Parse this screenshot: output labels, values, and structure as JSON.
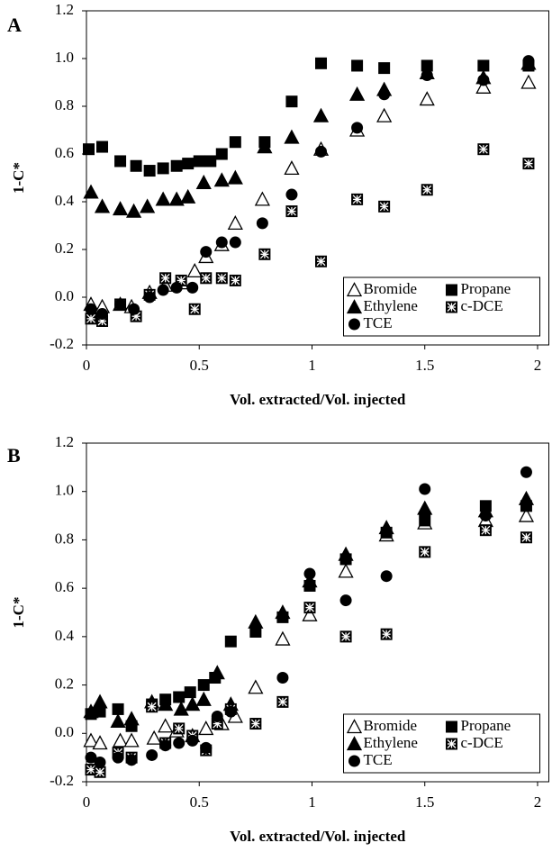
{
  "chart_data": [
    {
      "type": "scatter",
      "panel_label": "A",
      "xlabel": "Vol. extracted/Vol. injected",
      "ylabel": "1-C*",
      "xlim": [
        0,
        2.05
      ],
      "xticks": [
        0,
        0.5,
        1,
        1.5,
        2
      ],
      "ylim": [
        -0.2,
        1.2
      ],
      "yticks": [
        -0.2,
        {
          "value": 0,
          "label": "0.0"
        },
        0.2,
        0.4,
        0.6,
        0.8,
        {
          "value": 1,
          "label": "1.0"
        },
        1.2
      ],
      "legend": "lower right",
      "series": [
        {
          "name": "Bromide",
          "color": "#000000",
          "marker": "triangle-open",
          "x": [
            0.02,
            0.07,
            0.15,
            0.2,
            0.28,
            0.35,
            0.42,
            0.48,
            0.53,
            0.6,
            0.66,
            0.78,
            0.91,
            1.04,
            1.2,
            1.32,
            1.51,
            1.76,
            1.96
          ],
          "values": [
            -0.03,
            -0.04,
            -0.03,
            -0.04,
            0.02,
            0.05,
            0.06,
            0.11,
            0.17,
            0.22,
            0.31,
            0.41,
            0.54,
            0.62,
            0.7,
            0.76,
            0.83,
            0.88,
            0.9
          ]
        },
        {
          "name": "Propane",
          "color": "#000000",
          "marker": "square",
          "x": [
            0.01,
            0.07,
            0.15,
            0.22,
            0.28,
            0.34,
            0.4,
            0.45,
            0.5,
            0.55,
            0.6,
            0.66,
            0.79,
            0.91,
            1.04,
            1.2,
            1.32,
            1.51,
            1.76,
            1.96
          ],
          "values": [
            0.62,
            0.63,
            0.57,
            0.55,
            0.53,
            0.54,
            0.55,
            0.56,
            0.57,
            0.57,
            0.6,
            0.65,
            0.65,
            0.82,
            0.98,
            0.97,
            0.96,
            0.97,
            0.97,
            0.97
          ]
        },
        {
          "name": "Ethylene",
          "color": "#000000",
          "marker": "triangle",
          "x": [
            0.02,
            0.07,
            0.15,
            0.21,
            0.27,
            0.34,
            0.4,
            0.45,
            0.52,
            0.6,
            0.66,
            0.79,
            0.91,
            1.04,
            1.2,
            1.32,
            1.51,
            1.76,
            1.96
          ],
          "values": [
            0.44,
            0.38,
            0.37,
            0.36,
            0.38,
            0.41,
            0.41,
            0.42,
            0.48,
            0.49,
            0.5,
            0.63,
            0.67,
            0.76,
            0.85,
            0.87,
            0.94,
            0.92,
            0.98
          ]
        },
        {
          "name": "c-DCE",
          "color": "#000000",
          "marker": "square-x",
          "x": [
            0.02,
            0.07,
            0.15,
            0.22,
            0.28,
            0.35,
            0.42,
            0.48,
            0.53,
            0.6,
            0.66,
            0.79,
            0.91,
            1.04,
            1.2,
            1.32,
            1.51,
            1.76,
            1.96
          ],
          "values": [
            -0.09,
            -0.1,
            -0.03,
            -0.08,
            0.01,
            0.08,
            0.07,
            -0.05,
            0.08,
            0.08,
            0.07,
            0.18,
            0.36,
            0.15,
            0.41,
            0.38,
            0.45,
            0.62,
            0.56
          ]
        },
        {
          "name": "TCE",
          "color": "#000000",
          "marker": "circle",
          "x": [
            0.02,
            0.07,
            0.15,
            0.21,
            0.28,
            0.34,
            0.4,
            0.47,
            0.53,
            0.6,
            0.66,
            0.78,
            0.91,
            1.04,
            1.2,
            1.32,
            1.51,
            1.76,
            1.96
          ],
          "values": [
            -0.05,
            -0.07,
            -0.03,
            -0.05,
            0.0,
            0.03,
            0.04,
            0.04,
            0.19,
            0.23,
            0.23,
            0.31,
            0.43,
            0.61,
            0.71,
            0.85,
            0.93,
            0.91,
            0.99
          ]
        }
      ]
    },
    {
      "type": "scatter",
      "panel_label": "B",
      "xlabel": "Vol. extracted/Vol. injected",
      "ylabel": "1-C*",
      "xlim": [
        0,
        2.05
      ],
      "xticks": [
        0,
        0.5,
        1,
        1.5,
        2
      ],
      "ylim": [
        -0.2,
        1.2
      ],
      "yticks": [
        -0.2,
        {
          "value": 0,
          "label": "0.0"
        },
        0.2,
        0.4,
        0.6,
        0.8,
        {
          "value": 1,
          "label": "1.0"
        },
        1.2
      ],
      "legend": "lower right",
      "series": [
        {
          "name": "Bromide",
          "color": "#000000",
          "marker": "triangle-open",
          "x": [
            0.02,
            0.06,
            0.15,
            0.2,
            0.3,
            0.35,
            0.4,
            0.47,
            0.53,
            0.6,
            0.66,
            0.75,
            0.87,
            0.99,
            1.15,
            1.33,
            1.5,
            1.77,
            1.95
          ],
          "values": [
            -0.03,
            -0.04,
            -0.03,
            -0.03,
            -0.02,
            0.03,
            0.01,
            -0.01,
            0.02,
            0.04,
            0.07,
            0.19,
            0.39,
            0.49,
            0.67,
            0.82,
            0.87,
            0.88,
            0.9
          ]
        },
        {
          "name": "Propane",
          "color": "#000000",
          "marker": "square",
          "x": [
            0.02,
            0.06,
            0.14,
            0.2,
            0.29,
            0.35,
            0.41,
            0.46,
            0.52,
            0.57,
            0.64,
            0.75,
            0.87,
            0.99,
            1.15,
            1.33,
            1.5,
            1.77,
            1.95
          ],
          "values": [
            0.08,
            0.09,
            0.1,
            0.03,
            0.12,
            0.14,
            0.15,
            0.17,
            0.2,
            0.23,
            0.38,
            0.42,
            0.48,
            0.61,
            0.72,
            0.83,
            0.88,
            0.94,
            0.94
          ]
        },
        {
          "name": "Ethylene",
          "color": "#000000",
          "marker": "triangle",
          "x": [
            0.02,
            0.06,
            0.14,
            0.2,
            0.29,
            0.35,
            0.42,
            0.47,
            0.52,
            0.58,
            0.64,
            0.75,
            0.87,
            0.99,
            1.15,
            1.33,
            1.5,
            1.77,
            1.95
          ],
          "values": [
            0.09,
            0.13,
            0.05,
            0.06,
            0.13,
            0.12,
            0.1,
            0.12,
            0.14,
            0.25,
            0.12,
            0.46,
            0.5,
            0.63,
            0.74,
            0.85,
            0.93,
            0.92,
            0.97
          ]
        },
        {
          "name": "c-DCE",
          "color": "#000000",
          "marker": "square-x",
          "x": [
            0.02,
            0.06,
            0.14,
            0.2,
            0.29,
            0.35,
            0.41,
            0.47,
            0.53,
            0.58,
            0.64,
            0.75,
            0.87,
            0.99,
            1.15,
            1.33,
            1.5,
            1.77,
            1.95
          ],
          "values": [
            -0.15,
            -0.16,
            -0.08,
            -0.1,
            0.11,
            -0.04,
            0.02,
            -0.01,
            -0.07,
            0.04,
            0.1,
            0.04,
            0.13,
            0.52,
            0.4,
            0.41,
            0.75,
            0.84,
            0.81
          ]
        },
        {
          "name": "TCE",
          "color": "#000000",
          "marker": "circle",
          "x": [
            0.02,
            0.06,
            0.14,
            0.2,
            0.29,
            0.35,
            0.41,
            0.47,
            0.53,
            0.58,
            0.64,
            0.87,
            0.99,
            1.15,
            1.33,
            1.5,
            1.77,
            1.95
          ],
          "values": [
            -0.1,
            -0.12,
            -0.1,
            -0.11,
            -0.09,
            -0.05,
            -0.04,
            -0.03,
            -0.06,
            0.07,
            0.09,
            0.23,
            0.66,
            0.55,
            0.65,
            1.01,
            0.9,
            1.08
          ]
        }
      ]
    }
  ]
}
